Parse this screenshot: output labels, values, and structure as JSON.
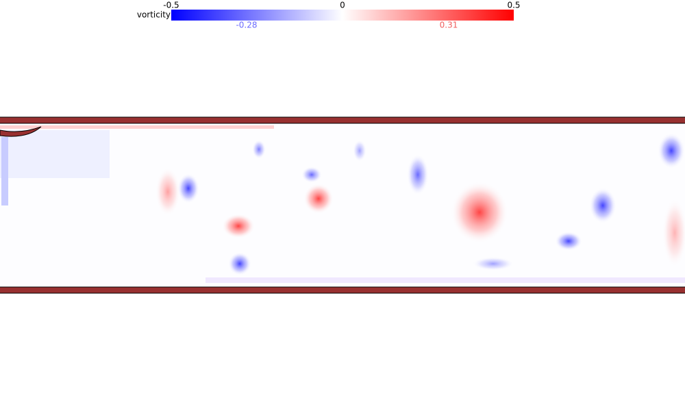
{
  "colorbar": {
    "label": "vorticity",
    "range": [
      -0.5,
      0.5
    ],
    "ticks": [
      -0.5,
      0,
      0.5
    ],
    "min_marker": -0.28,
    "max_marker": 0.31,
    "colors": [
      "#0000ff",
      "#ffffff",
      "#ff0000"
    ]
  }
}
